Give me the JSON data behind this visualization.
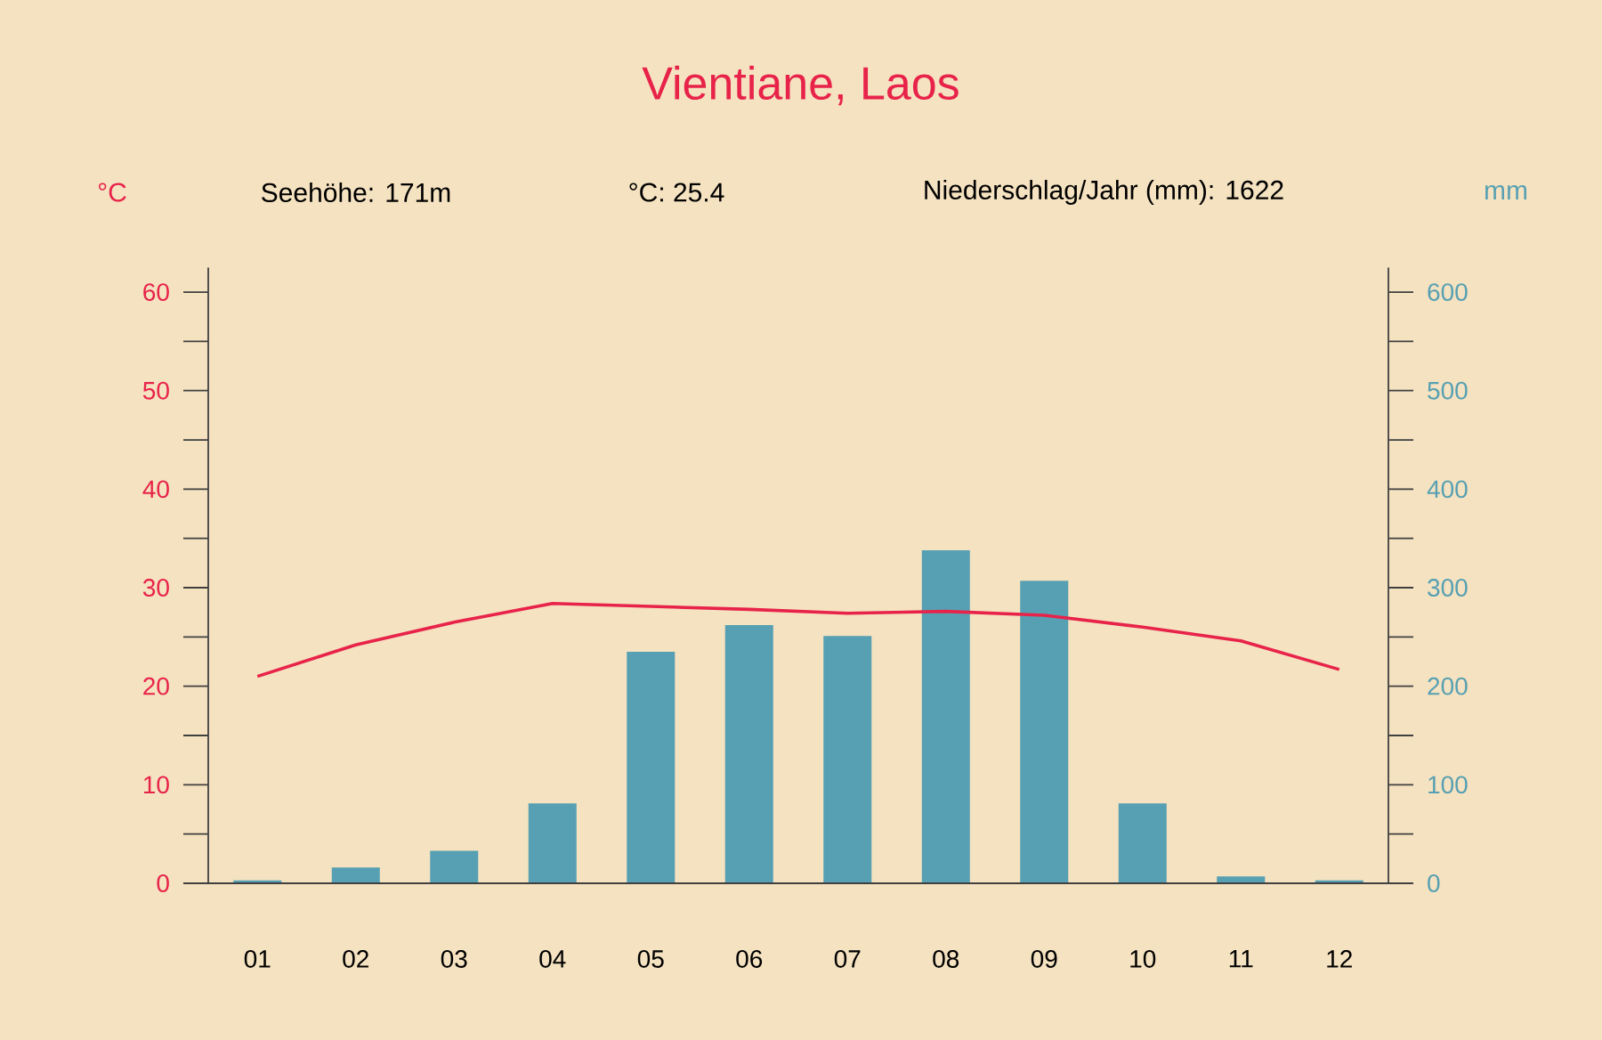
{
  "chart_data": {
    "type": "bar",
    "title": "Vientiane, Laos",
    "ylabel": "°C",
    "y2label": "mm",
    "annotations": [
      "Seehöhe: 171m",
      "°C: 25.4",
      "Niederschlag/Jahr (mm): 1622"
    ],
    "categories": [
      "01",
      "02",
      "03",
      "04",
      "05",
      "06",
      "07",
      "08",
      "09",
      "10",
      "11",
      "12"
    ],
    "series": [
      {
        "axis": "y2",
        "color": "#57a0b3",
        "values": [
          3,
          16,
          33,
          81,
          235,
          262,
          251,
          338,
          307,
          81,
          7,
          3
        ]
      },
      {
        "type": "line",
        "axis": "y",
        "color": "#e8234a",
        "values": [
          21.0,
          24.2,
          26.5,
          28.4,
          28.1,
          27.8,
          27.4,
          27.6,
          27.2,
          26.0,
          24.6,
          21.7
        ]
      }
    ],
    "ylim": [
      0,
      62.5
    ],
    "yticks": [
      0,
      {
        "value": 5,
        "label": null
      },
      10,
      {
        "value": 15,
        "label": null
      },
      20,
      {
        "value": 25,
        "label": null
      },
      30,
      {
        "value": 35,
        "label": null
      },
      40,
      {
        "value": 45,
        "label": null
      },
      50,
      {
        "value": 55,
        "label": null
      },
      60
    ],
    "y2lim": [
      0,
      625
    ],
    "y2ticks": [
      0,
      {
        "value": 50,
        "label": null
      },
      100,
      {
        "value": 150,
        "label": null
      },
      200,
      {
        "value": 250,
        "label": null
      },
      300,
      {
        "value": 350,
        "label": null
      },
      400,
      {
        "value": 450,
        "label": null
      },
      500,
      {
        "value": 550,
        "label": null
      },
      600
    ]
  }
}
